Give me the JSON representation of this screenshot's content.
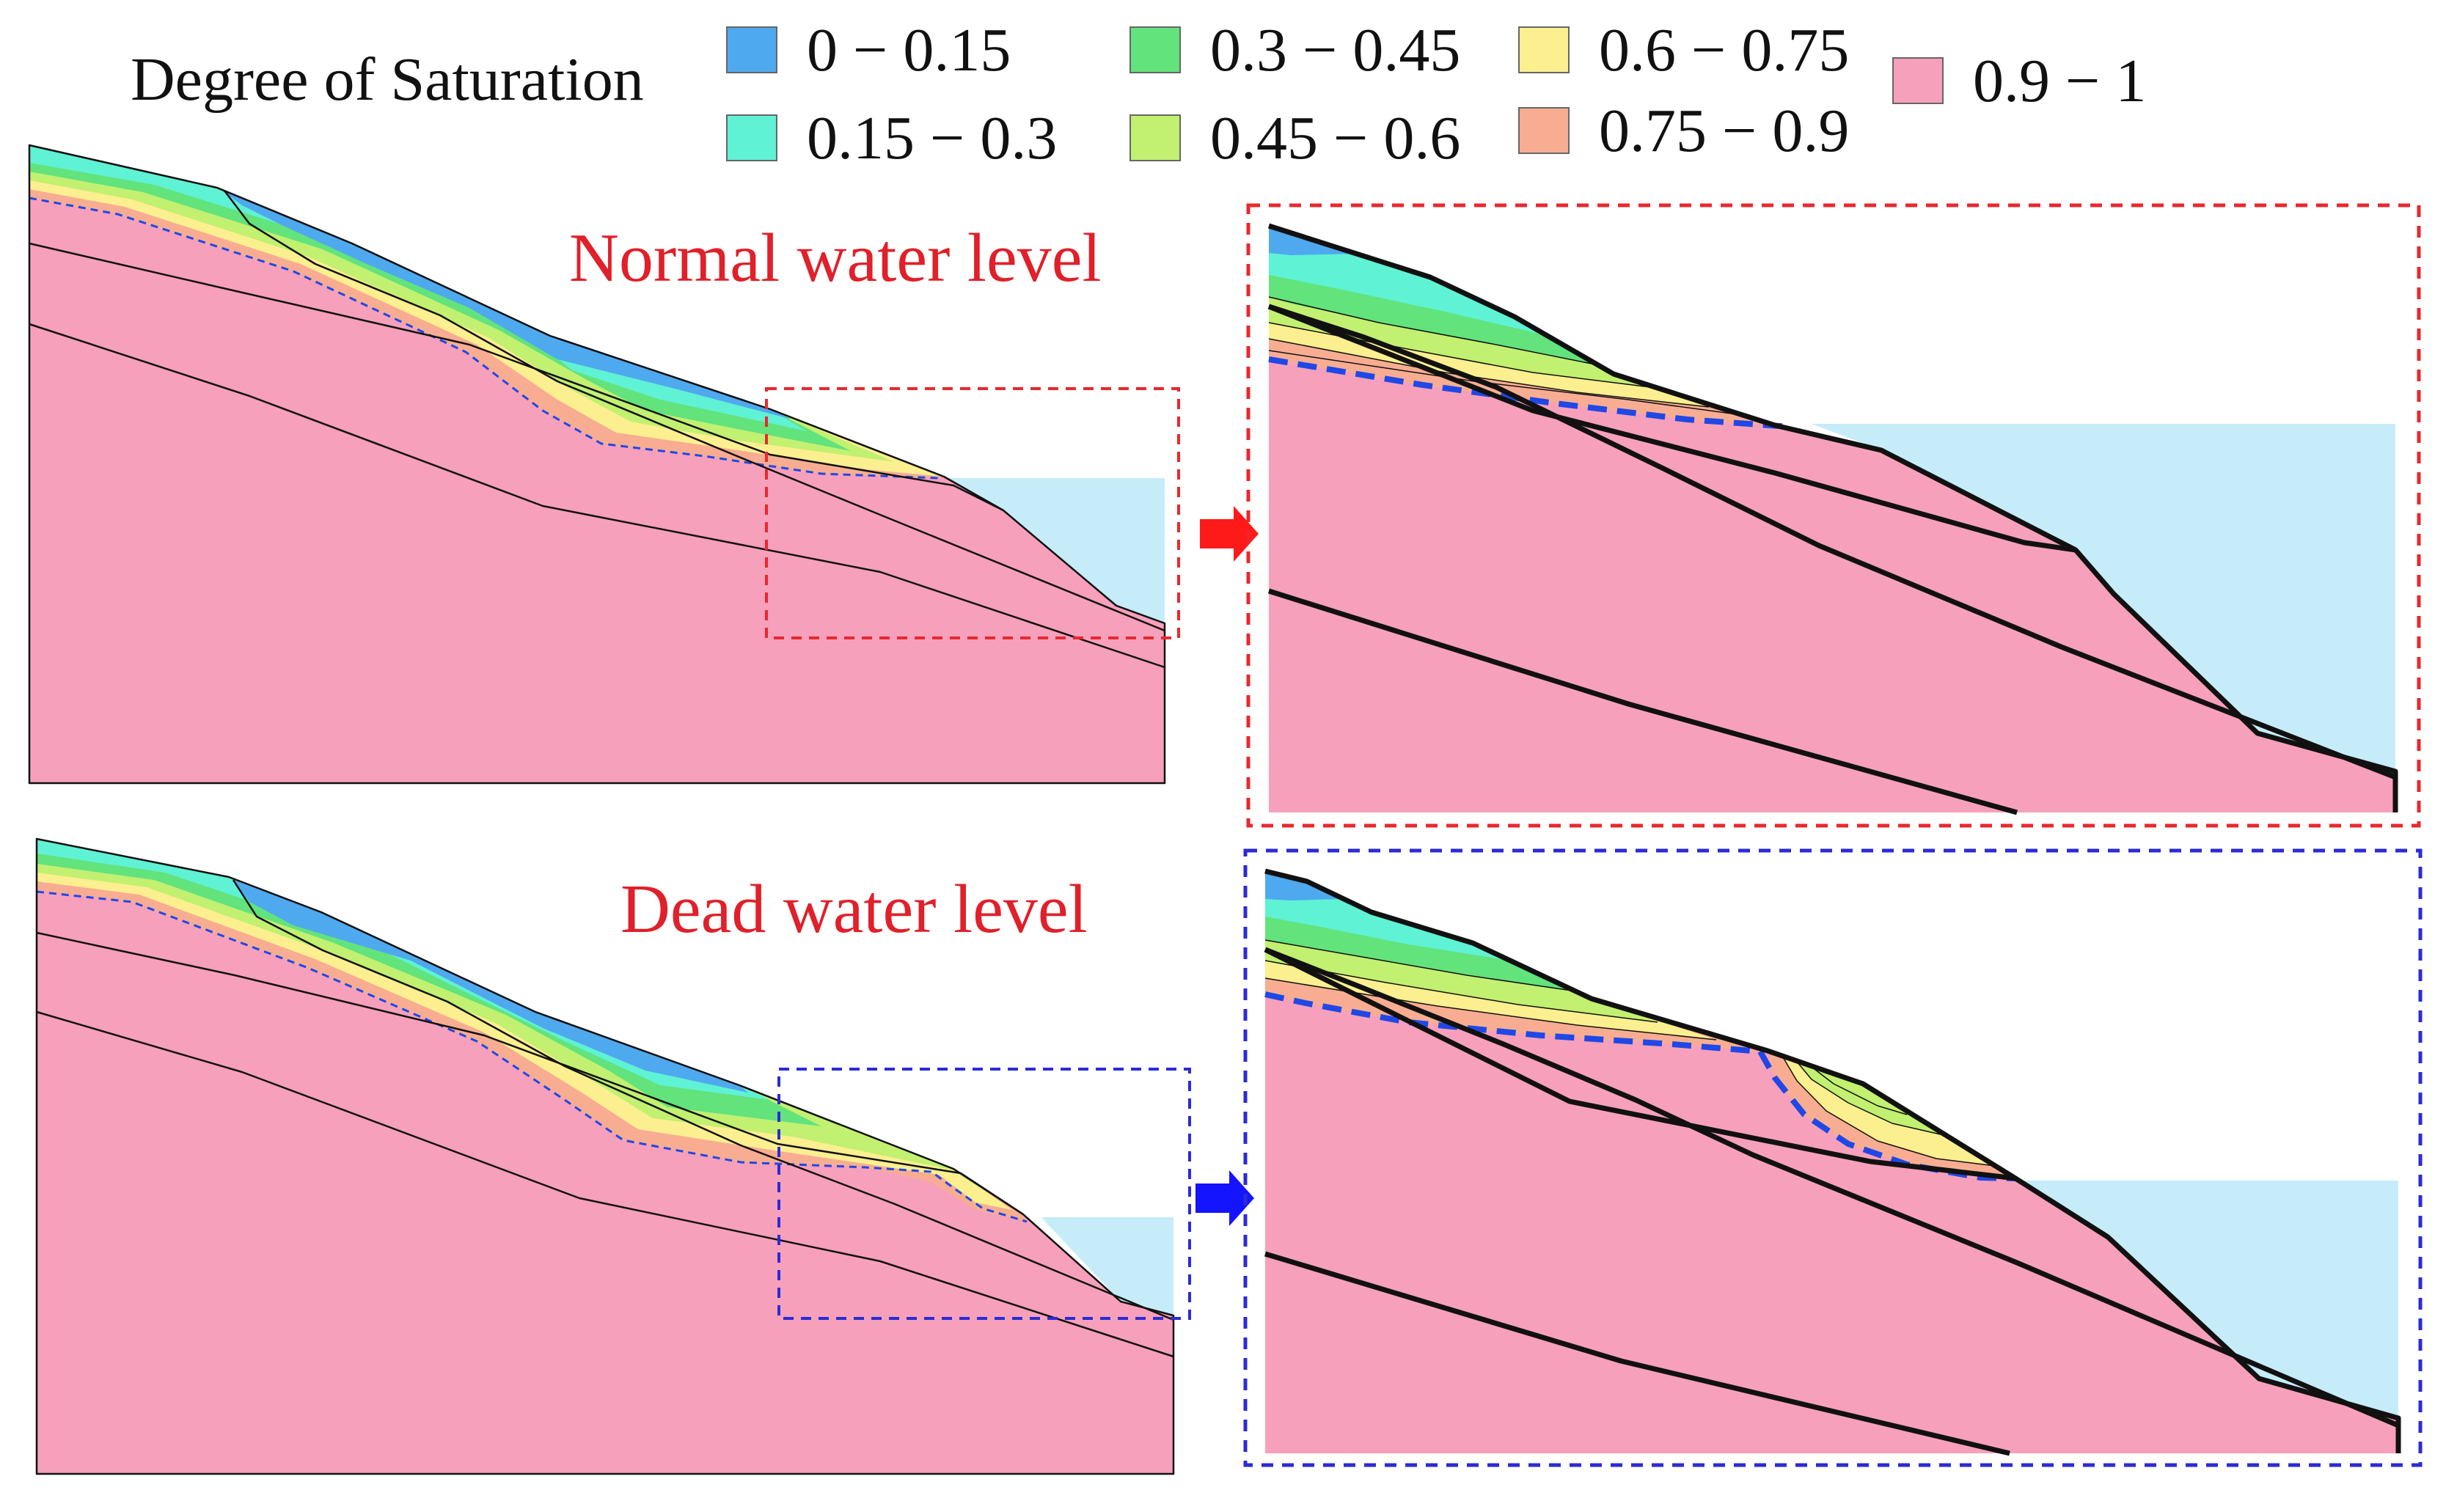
{
  "legend": {
    "title": "Degree of Saturation",
    "items": [
      {
        "label": "0 − 0.15",
        "color": "#4fa9ef"
      },
      {
        "label": "0.15 − 0.3",
        "color": "#5ff2d4"
      },
      {
        "label": "0.3 − 0.45",
        "color": "#62e37c"
      },
      {
        "label": "0.45 − 0.6",
        "color": "#c2f071"
      },
      {
        "label": "0.6 − 0.75",
        "color": "#fcef8f"
      },
      {
        "label": "0.75 − 0.9",
        "color": "#f8ad92"
      },
      {
        "label": "0.9 − 1",
        "color": "#f7a0bb"
      }
    ]
  },
  "panels": {
    "normal": {
      "title": "Normal water level",
      "frame_color": "#e8282e",
      "arrow_color": "#ff1a1a"
    },
    "dead": {
      "title": "Dead water level",
      "frame_color": "#2b2bd6",
      "arrow_color": "#1414ff"
    }
  },
  "colors": {
    "saturated": "#f7a0bb",
    "water": "#c6ecf9",
    "outline": "#111111",
    "phreatic_line": "#1f48e6"
  }
}
